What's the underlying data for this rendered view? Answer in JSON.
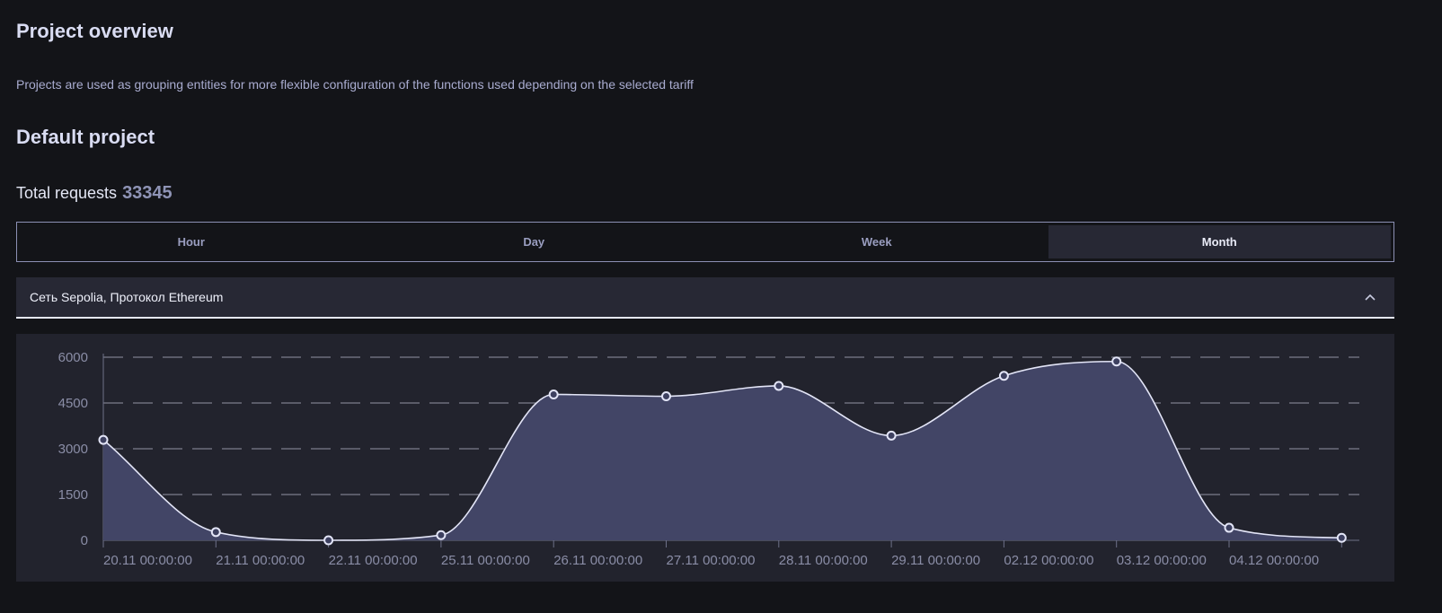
{
  "page": {
    "title": "Project overview",
    "description": "Projects are used as grouping entities for more flexible configuration of the functions used depending on the selected tariff"
  },
  "project": {
    "title": "Default project",
    "total_label": "Total requests",
    "total_value": "33345"
  },
  "period_tabs": [
    {
      "label": "Hour",
      "active": false
    },
    {
      "label": "Day",
      "active": false
    },
    {
      "label": "Week",
      "active": false
    },
    {
      "label": "Month",
      "active": true
    }
  ],
  "network_select": {
    "label": "Сеть Sepolia, Протокол Ethereum",
    "icon": "chevron-up-icon"
  },
  "colors": {
    "line": "#e3e5f7",
    "area": "#424566",
    "point_fill": "#3d4060",
    "grid": "#b7b9cc"
  },
  "chart_data": {
    "type": "area",
    "x": [
      "20.11 00:00:00",
      "21.11 00:00:00",
      "22.11 00:00:00",
      "25.11 00:00:00",
      "26.11 00:00:00",
      "27.11 00:00:00",
      "28.11 00:00:00",
      "29.11 00:00:00",
      "02.12 00:00:00",
      "03.12 00:00:00",
      "04.12 00:00:00",
      ""
    ],
    "values": [
      3290,
      270,
      0,
      170,
      4780,
      4720,
      5060,
      3430,
      5390,
      5860,
      410,
      80
    ],
    "yticks": [
      0,
      1500,
      3000,
      4500,
      6000
    ],
    "ylim": [
      0,
      6000
    ],
    "grid": "horizontal dashed",
    "smooth": true
  }
}
